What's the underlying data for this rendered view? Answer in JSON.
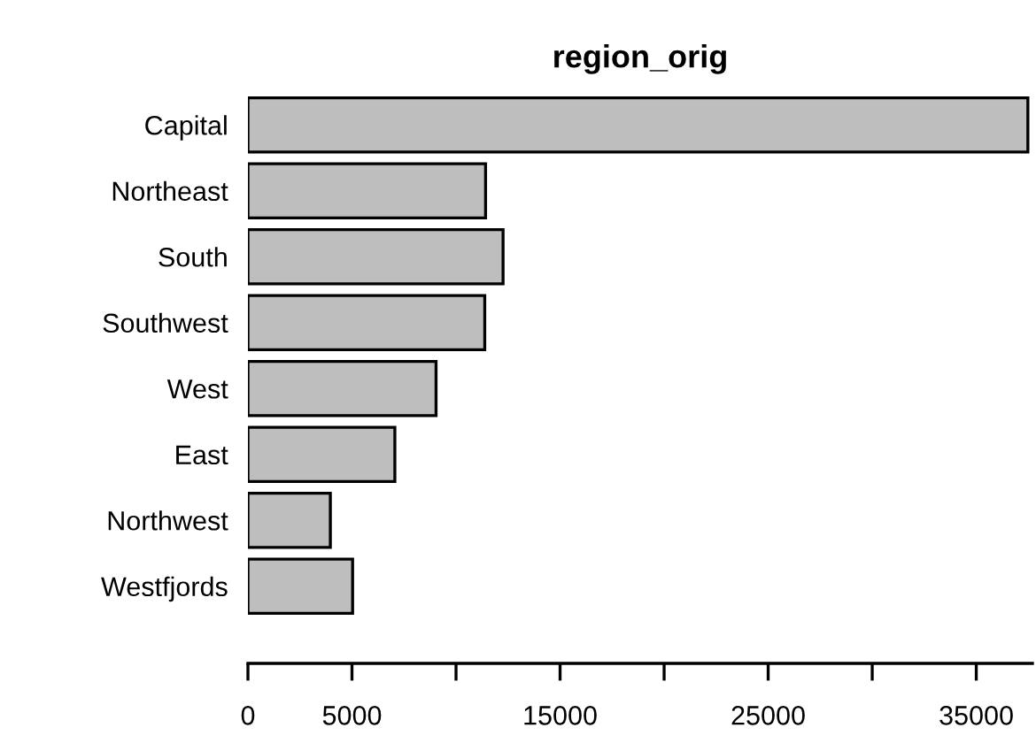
{
  "chart_data": {
    "type": "bar",
    "orientation": "horizontal",
    "title": "region_orig",
    "categories": [
      "Capital",
      "Northeast",
      "South",
      "Southwest",
      "West",
      "East",
      "Northwest",
      "Westfjords"
    ],
    "values": [
      37480,
      11420,
      12260,
      11380,
      9040,
      7060,
      3960,
      5030
    ],
    "color": "#bebebe",
    "xlim": [
      0,
      37700
    ],
    "xticks": [
      0,
      5000,
      {
        "value": 10000,
        "label": null
      },
      15000,
      {
        "value": 20000,
        "label": null
      },
      25000,
      {
        "value": 30000,
        "label": null
      },
      35000
    ],
    "grid": false,
    "legend": false
  }
}
